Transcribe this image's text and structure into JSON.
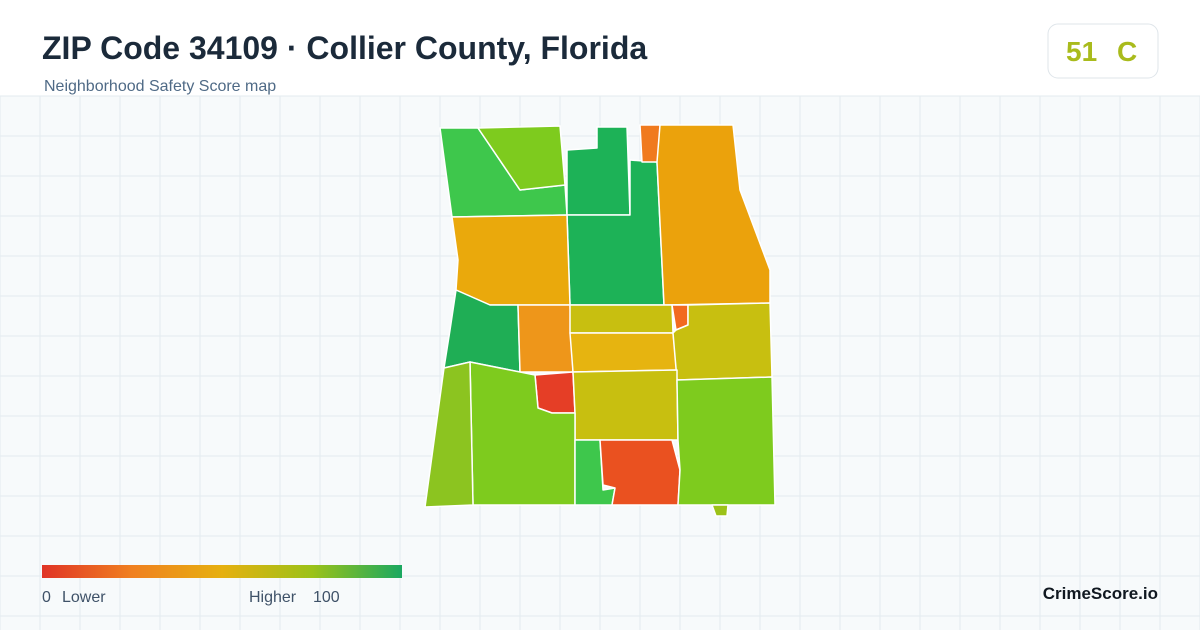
{
  "header": {
    "title": "ZIP Code 34109 · Collier County, Florida",
    "subtitle": "Neighborhood Safety Score map",
    "score": 51,
    "grade": "C"
  },
  "legend": {
    "min": 0,
    "min_label": "Lower",
    "max_label": "Higher",
    "max": 100
  },
  "brand": "CrimeScore.io"
}
